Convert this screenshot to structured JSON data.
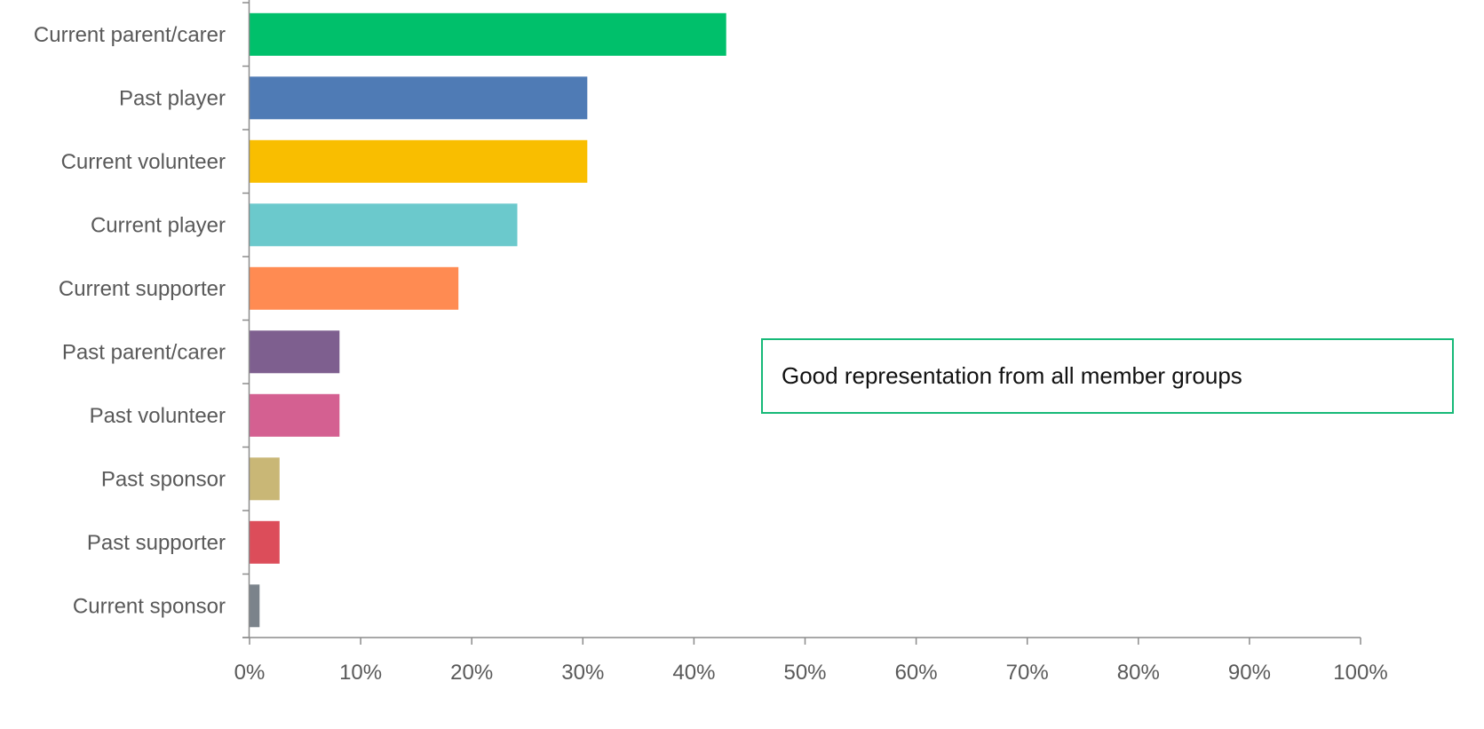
{
  "chart_data": {
    "type": "bar",
    "orientation": "horizontal",
    "categories": [
      "Current parent/carer",
      "Past player",
      "Current volunteer",
      "Current player",
      "Current supporter",
      "Past parent/carer",
      "Past volunteer",
      "Past sponsor",
      "Past supporter",
      "Current sponsor"
    ],
    "values": [
      42.9,
      30.4,
      30.4,
      24.1,
      18.8,
      8.1,
      8.1,
      2.7,
      2.7,
      0.9
    ],
    "colors": [
      "#00c06b",
      "#4f7bb5",
      "#f9be00",
      "#6bc9cc",
      "#ff8b52",
      "#7e5f8f",
      "#d46091",
      "#c9b776",
      "#dc4d5a",
      "#7b838b"
    ],
    "xlim": [
      0,
      100
    ],
    "ticks": [
      "0%",
      "10%",
      "20%",
      "30%",
      "40%",
      "50%",
      "60%",
      "70%",
      "80%",
      "90%",
      "100%"
    ],
    "title": "",
    "xlabel": "",
    "ylabel": "",
    "grid": false,
    "legend": "none",
    "annotation": "Good representation from all member groups"
  },
  "style": {
    "axis_color": "#8c8c8c",
    "label_color": "#595959",
    "callout_border": "#17b978"
  }
}
